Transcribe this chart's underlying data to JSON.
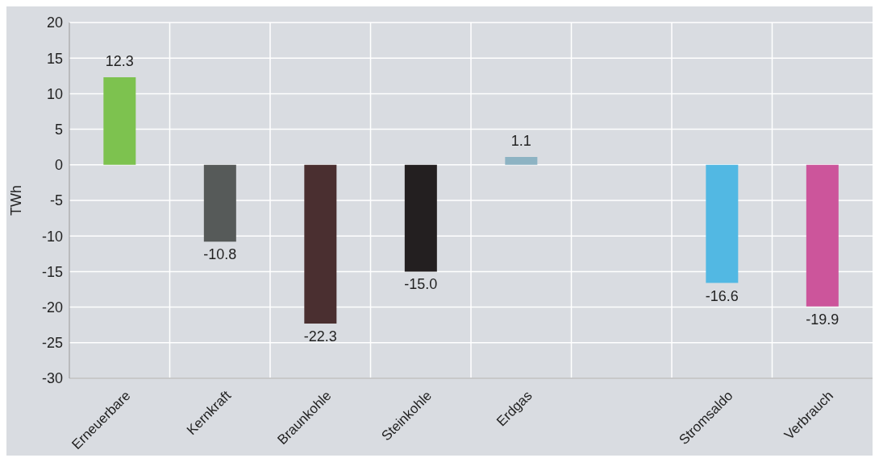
{
  "chart_data": {
    "type": "bar",
    "ylabel": "TWh",
    "categories": [
      "Erneuerbare",
      "Kernkraft",
      "Braunkohle",
      "Steinkohle",
      "Erdgas",
      null,
      "Stromsaldo",
      "Verbrauch"
    ],
    "values": [
      12.3,
      -10.8,
      -22.3,
      -15.0,
      1.1,
      null,
      -16.6,
      -19.9
    ],
    "colors": [
      "#7dc24f",
      "#565a59",
      "#4a2f30",
      "#231f20",
      "#8db3c3",
      "#000000",
      "#52b8e3",
      "#cc559b"
    ],
    "value_labels": [
      "12.3",
      "-10.8",
      "-22.3",
      "-15.0",
      "1.1",
      null,
      "-16.6",
      "-19.9"
    ],
    "ylim": [
      -30,
      20
    ],
    "yticks": [
      -30,
      -25,
      -20,
      -15,
      -10,
      -5,
      0,
      5,
      10,
      15,
      20
    ],
    "grid": true
  }
}
